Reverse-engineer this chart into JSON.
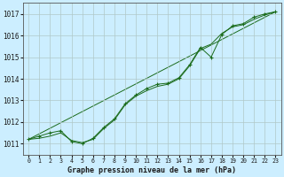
{
  "bg_color": "#cceeff",
  "grid_color": "#b0c8c8",
  "line_color": "#1a6b1a",
  "title": "Graphe pression niveau de la mer (hPa)",
  "xlim": [
    -0.5,
    23.5
  ],
  "ylim": [
    1010.5,
    1017.5
  ],
  "yticks": [
    1011,
    1012,
    1013,
    1014,
    1015,
    1016,
    1017
  ],
  "xticks": [
    0,
    1,
    2,
    3,
    4,
    5,
    6,
    7,
    8,
    9,
    10,
    11,
    12,
    13,
    14,
    15,
    16,
    17,
    18,
    19,
    20,
    21,
    22,
    23
  ],
  "series_main": {
    "x": [
      0,
      1,
      2,
      3,
      4,
      5,
      6,
      7,
      8,
      9,
      10,
      11,
      12,
      13,
      14,
      15,
      16,
      17,
      18,
      19,
      20,
      21,
      22,
      23
    ],
    "y": [
      1011.2,
      1011.35,
      1011.5,
      1011.6,
      1011.1,
      1011.0,
      1011.25,
      1011.75,
      1012.15,
      1012.85,
      1013.25,
      1013.55,
      1013.75,
      1013.8,
      1014.05,
      1014.65,
      1015.45,
      1015.0,
      1016.05,
      1016.45,
      1016.55,
      1016.85,
      1017.0,
      1017.1
    ]
  },
  "series_smooth": {
    "x": [
      0,
      1,
      2,
      3,
      4,
      5,
      6,
      7,
      8,
      9,
      10,
      11,
      12,
      13,
      14,
      15,
      16,
      17,
      18,
      19,
      20,
      21,
      22,
      23
    ],
    "y": [
      1011.2,
      1011.25,
      1011.35,
      1011.5,
      1011.15,
      1011.05,
      1011.2,
      1011.7,
      1012.1,
      1012.8,
      1013.2,
      1013.45,
      1013.65,
      1013.75,
      1014.0,
      1014.6,
      1015.4,
      1015.6,
      1016.1,
      1016.4,
      1016.5,
      1016.75,
      1016.95,
      1017.1
    ]
  },
  "series_line1": {
    "x": [
      0,
      23
    ],
    "y": [
      1011.2,
      1017.1
    ]
  },
  "series_line2": {
    "x": [
      0,
      23
    ],
    "y": [
      1011.2,
      1017.1
    ]
  }
}
